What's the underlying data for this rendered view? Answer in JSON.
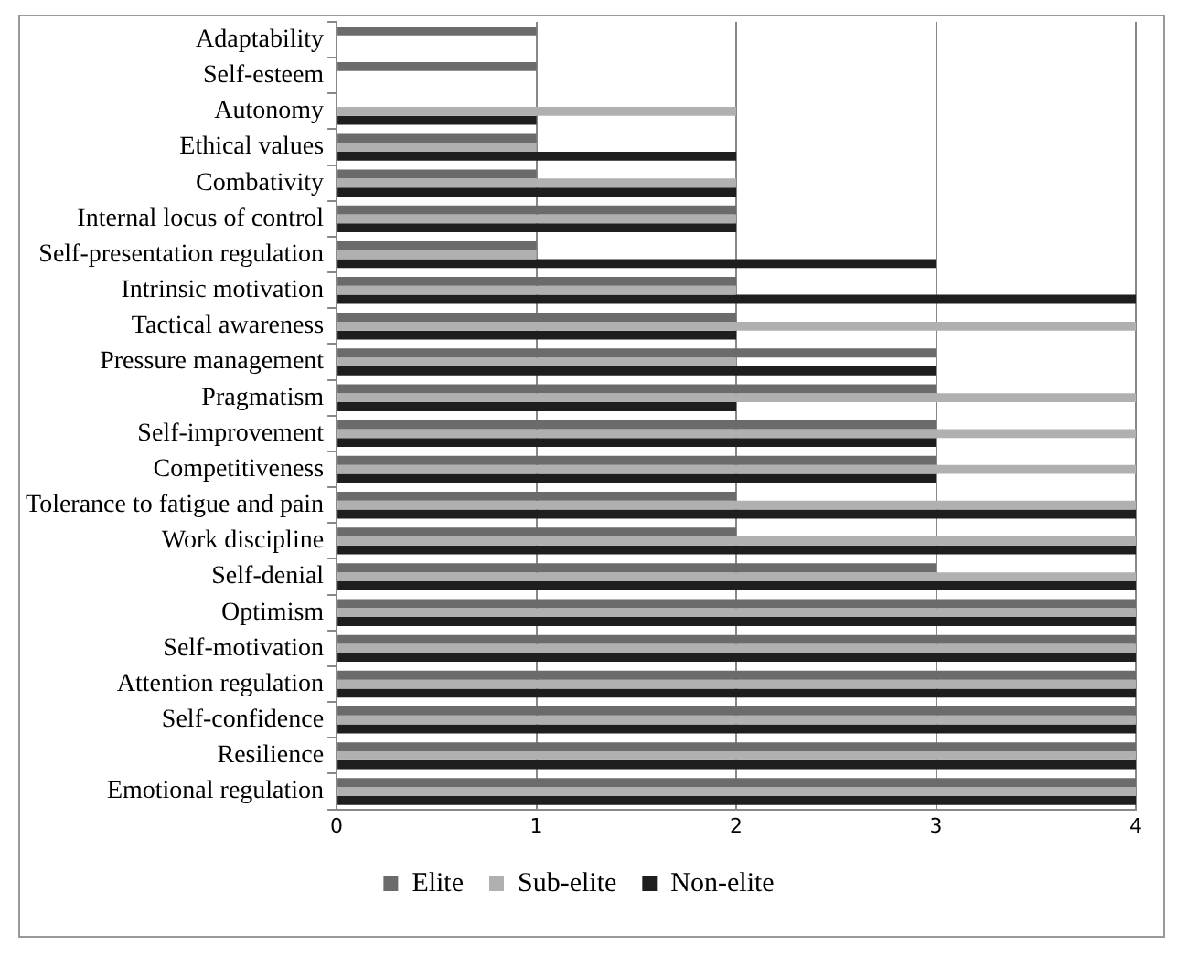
{
  "chart_data": {
    "type": "bar",
    "orientation": "horizontal",
    "categories": [
      "Adaptability",
      "Self-esteem",
      "Autonomy",
      "Ethical values",
      "Combativity",
      "Internal locus of control",
      "Self-presentation regulation",
      "Intrinsic motivation",
      "Tactical awareness",
      "Pressure management",
      "Pragmatism",
      "Self-improvement",
      "Competitiveness",
      "Tolerance to fatigue and pain",
      "Work discipline",
      "Self-denial",
      "Optimism",
      "Self-motivation",
      "Attention regulation",
      "Self-confidence",
      "Resilience",
      "Emotional regulation"
    ],
    "series": [
      {
        "name": "Elite",
        "color": "#6b6b6b",
        "values": [
          1,
          1,
          0,
          1,
          1,
          2,
          1,
          2,
          2,
          3,
          3,
          3,
          3,
          2,
          2,
          3,
          4,
          4,
          4,
          4,
          4,
          4
        ]
      },
      {
        "name": "Sub-elite",
        "color": "#b0b0b0",
        "values": [
          0,
          0,
          2,
          1,
          2,
          2,
          1,
          2,
          4,
          2,
          4,
          4,
          4,
          4,
          4,
          4,
          4,
          4,
          4,
          4,
          4,
          4
        ]
      },
      {
        "name": "Non-elite",
        "color": "#1e1e1e",
        "values": [
          0,
          0,
          1,
          2,
          2,
          2,
          3,
          4,
          2,
          3,
          2,
          3,
          3,
          4,
          4,
          4,
          4,
          4,
          4,
          4,
          4,
          4
        ]
      }
    ],
    "xlim": [
      0,
      4
    ],
    "xticks": [
      0,
      1,
      2,
      3,
      4
    ],
    "grid": "x",
    "legend": "bottom"
  }
}
